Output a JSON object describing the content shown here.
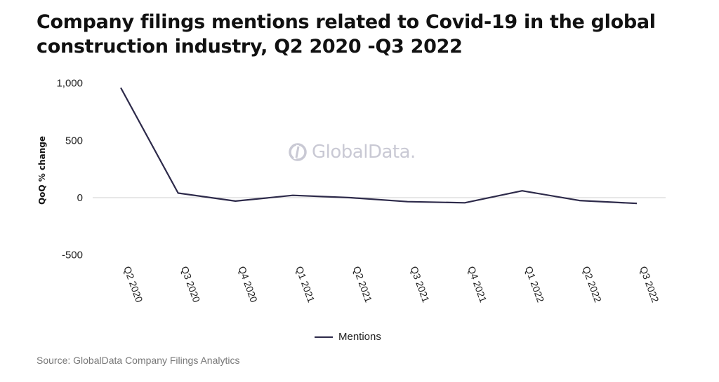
{
  "title": "Company filings mentions related to Covid-19 in the global construction industry, Q2 2020 -Q3 2022",
  "watermark": "GlobalData.",
  "source": "Source: GlobalData Company Filings Analytics",
  "colors": {
    "line": "#2d2a4a",
    "grid": "#cfcfcf"
  },
  "chart_data": {
    "type": "line",
    "categories": [
      "Q2 2020",
      "Q3 2020",
      "Q4 2020",
      "Q1 2021",
      "Q2 2021",
      "Q3 2021",
      "Q4 2021",
      "Q1 2022",
      "Q2 2022",
      "Q3 2022"
    ],
    "series": [
      {
        "name": "Mentions",
        "values": [
          960,
          40,
          -30,
          20,
          0,
          -35,
          -45,
          60,
          -25,
          -50
        ]
      }
    ],
    "ylabel": "QoQ % change",
    "xlabel": "",
    "ylim": [
      -500,
      1000
    ],
    "yticks": [
      -500,
      0,
      500,
      1000
    ],
    "ytick_labels": [
      "-500",
      "0",
      "500",
      "1,000"
    ],
    "grid": "zero line only",
    "legend_position": "bottom-center"
  }
}
